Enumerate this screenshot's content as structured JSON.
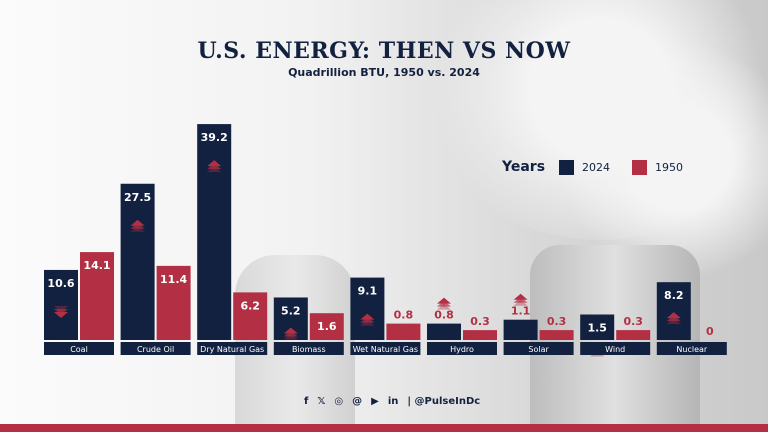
{
  "title": "U.S. ENERGY: THEN VS NOW",
  "subtitle": "Quadrillion BTU, 1950 vs. 2024",
  "colors": {
    "2024": "#12213f",
    "1950": "#b33044",
    "background": "#f2f2f2"
  },
  "legend": {
    "title": "Years",
    "items": [
      "2024",
      "1950"
    ]
  },
  "footer": {
    "icons": [
      "facebook-icon",
      "x-icon",
      "instagram-icon",
      "threads-icon",
      "youtube-icon",
      "linkedin-icon"
    ],
    "handle": "| @PulseInDc"
  },
  "chart_data": {
    "type": "bar",
    "title": "U.S. ENERGY: THEN VS NOW",
    "subtitle": "Quadrillion BTU, 1950 vs. 2024",
    "legend_position": "top-right",
    "grid": false,
    "categories": [
      "Coal",
      "Crude Oil",
      "Dry Natural Gas",
      "Biomass",
      "Wet Natural Gas",
      "Hydro",
      "Solar",
      "Wind",
      "Nuclear"
    ],
    "series": [
      {
        "name": "2024",
        "values": [
          10.6,
          27.5,
          39.2,
          5.2,
          9.1,
          0.8,
          1.1,
          1.5,
          8.2
        ],
        "trend": [
          "down",
          "up",
          "up",
          "up",
          "up",
          "up",
          "up",
          "up",
          "up"
        ]
      },
      {
        "name": "1950",
        "values": [
          14.1,
          11.4,
          6.2,
          1.6,
          0.8,
          0.3,
          0.3,
          0.3,
          0
        ]
      }
    ]
  }
}
